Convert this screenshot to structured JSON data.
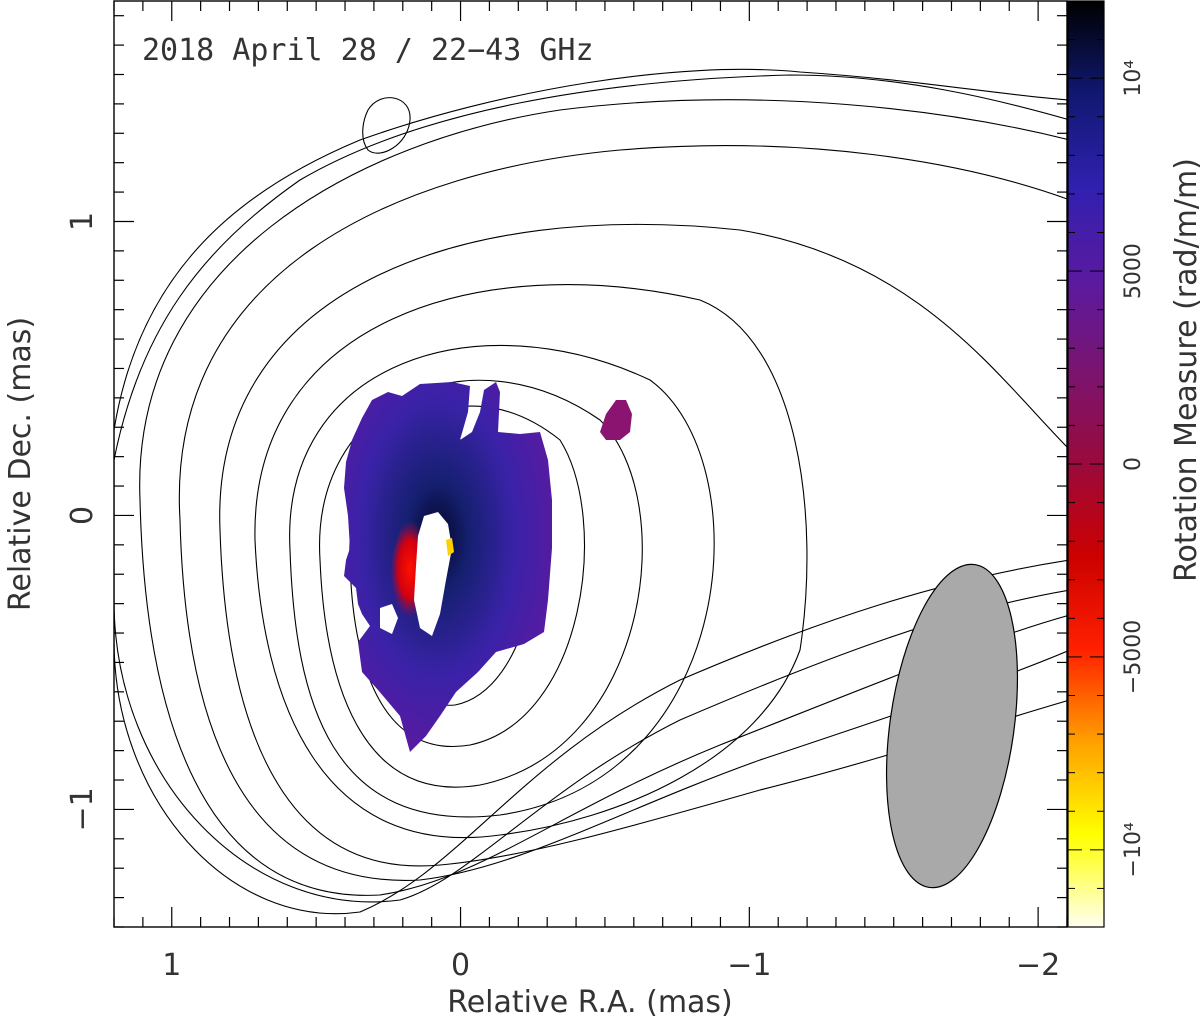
{
  "chart_data": {
    "type": "heatmap",
    "title": "2018 April 28 / 22−43 GHz",
    "xlabel": "Relative R.A. (mas)",
    "ylabel": "Relative Dec. (mas)",
    "xlim": [
      1.2,
      -2.1
    ],
    "ylim": [
      -1.4,
      1.75
    ],
    "xticks": [
      {
        "value": 1,
        "label": "1"
      },
      {
        "value": 0,
        "label": "0"
      },
      {
        "value": -1,
        "label": "−1"
      },
      {
        "value": -2,
        "label": "−2"
      }
    ],
    "yticks": [
      {
        "value": 1,
        "label": "1"
      },
      {
        "value": 0,
        "label": "0"
      },
      {
        "value": -1,
        "label": "−1"
      }
    ],
    "colorbar": {
      "label": "Rotation Measure (rad/m/m)",
      "range": [
        -12000,
        12000
      ],
      "ticks": [
        {
          "value": 10000,
          "label": "10⁴"
        },
        {
          "value": 5000,
          "label": "5000"
        },
        {
          "value": 0,
          "label": "0"
        },
        {
          "value": -5000,
          "label": "−5000"
        },
        {
          "value": -10000,
          "label": "−10⁴"
        }
      ],
      "stops": [
        "#fffff0",
        "#ffff00",
        "#ffa000",
        "#ff2000",
        "#cc0000",
        "#9a0a3c",
        "#7a1470",
        "#5a1aa0",
        "#3020b0",
        "#101870",
        "#000000"
      ]
    },
    "rm_map": {
      "description_values": "Rotation measure region near the core",
      "x_range": [
        0.4,
        -0.3
      ],
      "y_range": [
        -1.1,
        0.45
      ],
      "blob_center": [
        -0.55,
        0.35
      ]
    },
    "contours": {
      "levels_count": 11,
      "center": [
        -0.05,
        -0.12
      ]
    },
    "beam": {
      "center": [
        -1.65,
        -0.97
      ],
      "major_axis": 0.65,
      "minor_axis": 0.22,
      "position_angle_deg": 8,
      "fill": "#a9a9a9"
    },
    "grid": false
  }
}
